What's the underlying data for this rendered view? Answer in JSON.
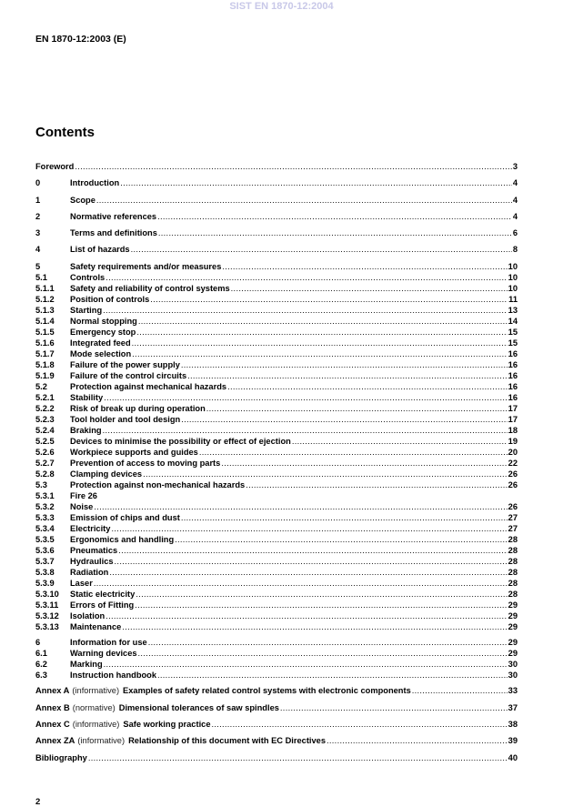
{
  "watermark": "SIST EN 1870-12:2004",
  "header": {
    "doc_id": "EN 1870-12:2003 (E)"
  },
  "contents_title": "Contents",
  "toc_groups": [
    [
      {
        "num": "",
        "title": "Foreword",
        "page": "3"
      }
    ],
    [
      {
        "num": "0",
        "title": "Introduction",
        "page": "4"
      }
    ],
    [
      {
        "num": "1",
        "title": "Scope",
        "page": "4"
      }
    ],
    [
      {
        "num": "2",
        "title": "Normative references",
        "page": "4"
      }
    ],
    [
      {
        "num": "3",
        "title": "Terms and definitions",
        "page": "6"
      }
    ],
    [
      {
        "num": "4",
        "title": "List of hazards",
        "page": "8"
      }
    ],
    [
      {
        "num": "5",
        "title": "Safety requirements and/or measures",
        "page": "10"
      },
      {
        "num": "5.1",
        "title": "Controls",
        "page": "10"
      },
      {
        "num": "5.1.1",
        "title": "Safety and reliability of control systems",
        "page": "10"
      },
      {
        "num": "5.1.2",
        "title": "Position of controls",
        "page": "11"
      },
      {
        "num": "5.1.3",
        "title": "Starting",
        "page": "13"
      },
      {
        "num": "5.1.4",
        "title": "Normal stopping",
        "page": "14"
      },
      {
        "num": "5.1.5",
        "title": "Emergency stop",
        "page": "15"
      },
      {
        "num": "5.1.6",
        "title": "Integrated feed",
        "page": "15"
      },
      {
        "num": "5.1.7",
        "title": "Mode selection",
        "page": "16"
      },
      {
        "num": "5.1.8",
        "title": "Failure of the power supply",
        "page": "16"
      },
      {
        "num": "5.1.9",
        "title": "Failure of the control circuits",
        "page": "16"
      },
      {
        "num": "5.2",
        "title": "Protection against mechanical hazards",
        "page": "16"
      },
      {
        "num": "5.2.1",
        "title": "Stability",
        "page": "16"
      },
      {
        "num": "5.2.2",
        "title": "Risk of break up during operation",
        "page": "17"
      },
      {
        "num": "5.2.3",
        "title": "Tool holder and tool design",
        "page": "17"
      },
      {
        "num": "5.2.4",
        "title": "Braking",
        "page": "18"
      },
      {
        "num": "5.2.5",
        "title": "Devices to minimise the possibility or effect of ejection",
        "page": "19"
      },
      {
        "num": "5.2.6",
        "title": "Workpiece supports and guides",
        "page": "20"
      },
      {
        "num": "5.2.7",
        "title": "Prevention of access to moving parts",
        "page": "22"
      },
      {
        "num": "5.2.8",
        "title": "Clamping devices",
        "page": "26"
      },
      {
        "num": "5.3",
        "title": "Protection against non-mechanical hazards",
        "page": "26"
      },
      {
        "num": "5.3.1",
        "title": "Fire 26",
        "page": ""
      },
      {
        "num": "5.3.2",
        "title": "Noise",
        "page": "26"
      },
      {
        "num": "5.3.3",
        "title": "Emission of chips and dust",
        "page": "27"
      },
      {
        "num": "5.3.4",
        "title": "Electricity",
        "page": "27"
      },
      {
        "num": "5.3.5",
        "title": "Ergonomics and handling",
        "page": "28"
      },
      {
        "num": "5.3.6",
        "title": "Pneumatics",
        "page": "28"
      },
      {
        "num": "5.3.7",
        "title": "Hydraulics",
        "page": "28"
      },
      {
        "num": "5.3.8",
        "title": "Radiation",
        "page": "28"
      },
      {
        "num": "5.3.9",
        "title": "Laser",
        "page": "28"
      },
      {
        "num": "5.3.10",
        "title": "Static electricity",
        "page": "28"
      },
      {
        "num": "5.3.11",
        "title": "Errors of Fitting",
        "page": "29"
      },
      {
        "num": "5.3.12",
        "title": "Isolation",
        "page": "29"
      },
      {
        "num": "5.3.13",
        "title": "Maintenance",
        "page": "29"
      }
    ],
    [
      {
        "num": "6",
        "title": "Information for use",
        "page": "29"
      },
      {
        "num": "6.1",
        "title": "Warning devices",
        "page": "29"
      },
      {
        "num": "6.2",
        "title": "Marking",
        "page": "30"
      },
      {
        "num": "6.3",
        "title": "Instruction handbook",
        "page": "30"
      }
    ],
    [
      {
        "annex": "Annex A",
        "status": "(informative)",
        "title": "Examples of safety related control systems with electronic components",
        "page": "33"
      }
    ],
    [
      {
        "annex": "Annex B",
        "status": "(normative)",
        "title": "Dimensional tolerances of saw spindles",
        "page": "37"
      }
    ],
    [
      {
        "annex": "Annex C",
        "status": "(informative)",
        "title": "Safe working practice",
        "page": "38"
      }
    ],
    [
      {
        "annex": "Annex ZA",
        "status": "(informative)",
        "title": "Relationship of this document with EC Directives",
        "page": "39"
      }
    ],
    [
      {
        "num": "",
        "title": "Bibliography",
        "page": "40"
      }
    ]
  ],
  "footer": {
    "page_number": "2"
  }
}
